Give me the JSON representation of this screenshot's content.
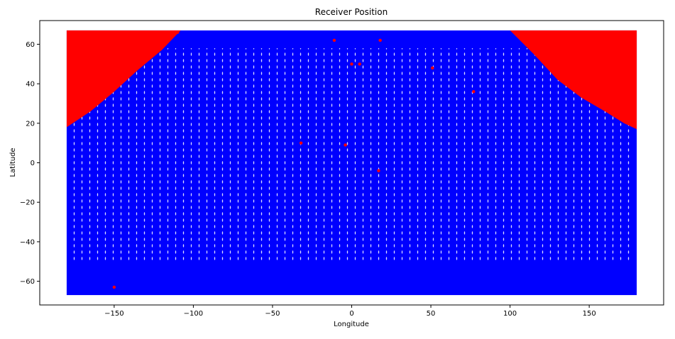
{
  "chart_data": {
    "type": "scatter",
    "title": "Receiver Position",
    "xlabel": "Longitude",
    "ylabel": "Latitude",
    "xlim": [
      -197,
      197
    ],
    "ylim": [
      -72,
      72
    ],
    "xticks": [
      -150,
      -100,
      -50,
      0,
      50,
      100,
      150
    ],
    "yticks": [
      -60,
      -40,
      -20,
      0,
      20,
      40,
      60
    ],
    "xtick_labels": [
      "−150",
      "−100",
      "−50",
      "0",
      "50",
      "100",
      "150"
    ],
    "ytick_labels": [
      "−60",
      "−40",
      "−20",
      "0",
      "20",
      "40",
      "60"
    ],
    "grid": false,
    "legend": "none",
    "data_extent": {
      "lon": [
        -180,
        180
      ],
      "lat": [
        -67,
        67
      ]
    },
    "series": [
      {
        "color": "#0000ff",
        "description": "dense global grid of receiver positions covering the full extent"
      },
      {
        "color": "#ff0000",
        "regions": [
          {
            "lon": [
              -180,
              -108
            ],
            "lat_min_at_lon": [
              [
                -180,
                18
              ],
              [
                -165,
                26
              ],
              [
                -150,
                36
              ],
              [
                -135,
                47
              ],
              [
                -120,
                57
              ],
              [
                -108,
                67
              ]
            ]
          },
          {
            "lon": [
              100,
              180
            ],
            "lat_min_at_lon": [
              [
                100,
                67
              ],
              [
                115,
                55
              ],
              [
                130,
                42
              ],
              [
                145,
                33
              ],
              [
                160,
                26
              ],
              [
                172,
                20
              ],
              [
                180,
                17
              ]
            ]
          }
        ],
        "outlier_points": [
          [
            -150,
            -63
          ],
          [
            -11,
            62
          ],
          [
            18,
            62
          ],
          [
            0,
            50
          ],
          [
            5,
            50
          ],
          [
            51,
            48
          ],
          [
            77,
            36
          ],
          [
            -32,
            10
          ],
          [
            -4,
            9
          ],
          [
            17,
            -4
          ],
          [
            -110,
            66
          ],
          [
            -117,
            62
          ]
        ]
      }
    ]
  }
}
